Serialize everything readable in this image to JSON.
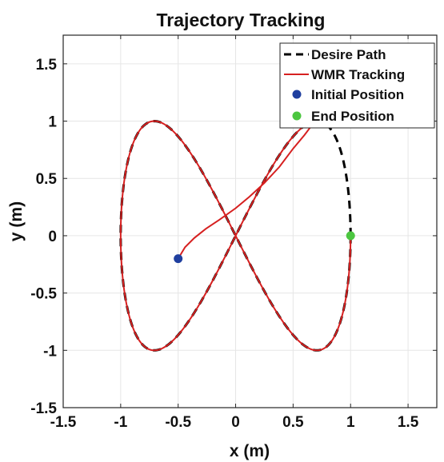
{
  "chart_data": {
    "type": "line",
    "title": "Trajectory Tracking",
    "xlabel": "x (m)",
    "ylabel": "y (m)",
    "xlim": [
      -1.5,
      1.75
    ],
    "ylim": [
      -1.5,
      1.75
    ],
    "xticks": [
      -1.5,
      -1,
      -0.5,
      0,
      0.5,
      1,
      1.5
    ],
    "yticks": [
      -1.5,
      -1,
      -0.5,
      0,
      0.5,
      1,
      1.5
    ],
    "xtick_labels": [
      "-1.5",
      "-1",
      "-0.5",
      "0",
      "0.5",
      "1",
      "1.5"
    ],
    "ytick_labels": [
      "-1.5",
      "-1",
      "-0.5",
      "0",
      "0.5",
      "1",
      "1.5"
    ],
    "grid": true,
    "legend_position": "top-right",
    "series": [
      {
        "name": "Desire Path",
        "style": "dashed",
        "color": "#000000",
        "curve": "x = cos(t), y = sin(2t), t from 0 to 2π",
        "x": [
          1.0,
          0.924,
          0.707,
          0.383,
          0.0,
          -0.383,
          -0.707,
          -0.924,
          -1.0,
          -0.924,
          -0.707,
          -0.383,
          0.0,
          0.383,
          0.707,
          0.924,
          1.0
        ],
        "y": [
          0.0,
          0.707,
          1.0,
          0.707,
          0.0,
          -0.707,
          -1.0,
          -0.707,
          0.0,
          0.707,
          1.0,
          0.707,
          0.0,
          -0.707,
          -1.0,
          -0.707,
          0.0
        ]
      },
      {
        "name": "WMR Tracking",
        "style": "solid",
        "color": "#d62020",
        "x": [
          -0.5,
          -0.44,
          -0.36,
          -0.26,
          -0.14,
          0.0,
          0.12,
          0.25,
          0.38,
          0.5,
          0.6,
          0.66,
          0.7,
          0.707,
          0.6,
          0.383,
          0.0,
          -0.383,
          -0.707,
          -0.924,
          -1.0,
          -0.924,
          -0.707,
          -0.383,
          0.0,
          0.383,
          0.707,
          0.924,
          1.0
        ],
        "y": [
          -0.2,
          -0.1,
          -0.02,
          0.06,
          0.14,
          0.24,
          0.34,
          0.46,
          0.6,
          0.76,
          0.88,
          0.96,
          0.995,
          1.0,
          0.96,
          0.707,
          0.0,
          -0.707,
          -1.0,
          -0.707,
          0.0,
          0.707,
          1.0,
          0.707,
          0.0,
          -0.707,
          -1.0,
          -0.707,
          0.0
        ]
      },
      {
        "name": "Initial Position",
        "style": "marker",
        "color": "#1f3f9f",
        "x": [
          -0.5
        ],
        "y": [
          -0.2
        ]
      },
      {
        "name": "End Position",
        "style": "marker",
        "color": "#4cc640",
        "x": [
          1.0
        ],
        "y": [
          0.0
        ]
      }
    ]
  }
}
